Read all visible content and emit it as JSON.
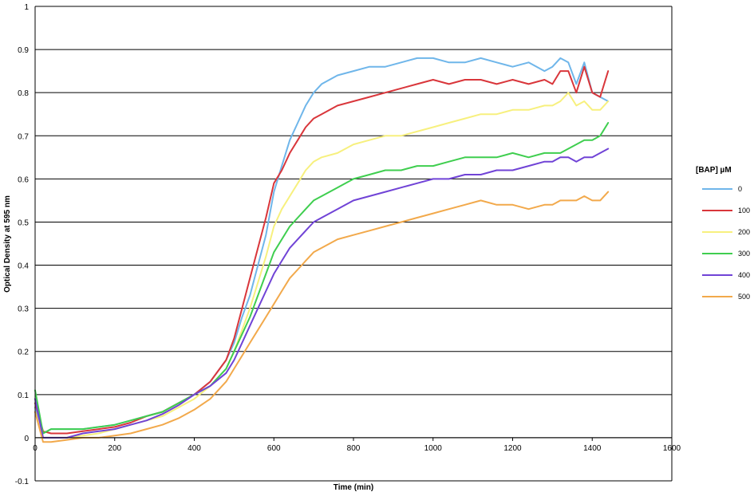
{
  "chart_data": {
    "type": "line",
    "xlabel": "Time (min)",
    "ylabel": "Optical Density at 595 nm",
    "xlim": [
      0,
      1600
    ],
    "ylim": [
      -0.1,
      1
    ],
    "xticks": [
      0,
      200,
      400,
      600,
      800,
      1000,
      1200,
      1400,
      1600
    ],
    "yticks": [
      -0.1,
      0,
      0.1,
      0.2,
      0.3,
      0.4,
      0.5,
      0.6,
      0.7,
      0.8,
      0.9,
      1
    ],
    "ytick_labels": [
      "-0.1",
      "0",
      "0.1",
      "0.2",
      "0.3",
      "0.4",
      "0.5",
      "0.6",
      "0.7",
      "0.8",
      "0.9",
      "1"
    ],
    "grid": "horizontal",
    "legend": {
      "title": "[BAP] µM",
      "position": "right"
    },
    "series": [
      {
        "name": "0",
        "color": "#6fb6ea",
        "x": [
          0,
          20,
          40,
          80,
          120,
          160,
          200,
          240,
          280,
          320,
          360,
          400,
          440,
          480,
          500,
          520,
          540,
          560,
          580,
          600,
          620,
          640,
          660,
          680,
          700,
          720,
          760,
          800,
          840,
          880,
          920,
          960,
          1000,
          1040,
          1080,
          1120,
          1160,
          1200,
          1240,
          1280,
          1300,
          1320,
          1340,
          1360,
          1380,
          1400,
          1420,
          1440
        ],
        "y": [
          0.07,
          0.01,
          0.02,
          0.02,
          0.02,
          0.025,
          0.03,
          0.04,
          0.05,
          0.06,
          0.08,
          0.1,
          0.13,
          0.18,
          0.22,
          0.28,
          0.33,
          0.4,
          0.47,
          0.57,
          0.63,
          0.69,
          0.73,
          0.77,
          0.8,
          0.82,
          0.84,
          0.85,
          0.86,
          0.86,
          0.87,
          0.88,
          0.88,
          0.87,
          0.87,
          0.88,
          0.87,
          0.86,
          0.87,
          0.85,
          0.86,
          0.88,
          0.87,
          0.82,
          0.87,
          0.8,
          0.79,
          0.78
        ]
      },
      {
        "name": "100",
        "color": "#d9363b",
        "x": [
          0,
          20,
          40,
          80,
          120,
          160,
          200,
          240,
          280,
          320,
          360,
          400,
          440,
          480,
          500,
          520,
          540,
          560,
          580,
          600,
          620,
          640,
          660,
          680,
          700,
          720,
          760,
          800,
          840,
          880,
          920,
          960,
          1000,
          1040,
          1080,
          1120,
          1160,
          1200,
          1240,
          1280,
          1300,
          1320,
          1340,
          1360,
          1380,
          1400,
          1420,
          1440
        ],
        "y": [
          0.08,
          0.015,
          0.01,
          0.01,
          0.015,
          0.02,
          0.025,
          0.035,
          0.05,
          0.06,
          0.08,
          0.1,
          0.13,
          0.18,
          0.23,
          0.3,
          0.37,
          0.44,
          0.51,
          0.59,
          0.62,
          0.66,
          0.69,
          0.72,
          0.74,
          0.75,
          0.77,
          0.78,
          0.79,
          0.8,
          0.81,
          0.82,
          0.83,
          0.82,
          0.83,
          0.83,
          0.82,
          0.83,
          0.82,
          0.83,
          0.82,
          0.85,
          0.85,
          0.8,
          0.86,
          0.8,
          0.79,
          0.85
        ]
      },
      {
        "name": "200",
        "color": "#f7f07e",
        "x": [
          0,
          20,
          40,
          80,
          120,
          160,
          200,
          240,
          280,
          320,
          360,
          400,
          440,
          480,
          500,
          520,
          540,
          560,
          580,
          600,
          620,
          640,
          660,
          680,
          700,
          720,
          760,
          800,
          840,
          880,
          920,
          960,
          1000,
          1040,
          1080,
          1120,
          1160,
          1200,
          1240,
          1280,
          1300,
          1320,
          1340,
          1360,
          1380,
          1400,
          1420,
          1440
        ],
        "y": [
          0.06,
          0.0,
          0.0,
          0.0,
          0.005,
          0.01,
          0.02,
          0.03,
          0.04,
          0.05,
          0.07,
          0.09,
          0.12,
          0.16,
          0.2,
          0.25,
          0.3,
          0.36,
          0.42,
          0.49,
          0.53,
          0.56,
          0.59,
          0.62,
          0.64,
          0.65,
          0.66,
          0.68,
          0.69,
          0.7,
          0.7,
          0.71,
          0.72,
          0.73,
          0.74,
          0.75,
          0.75,
          0.76,
          0.76,
          0.77,
          0.77,
          0.78,
          0.8,
          0.77,
          0.78,
          0.76,
          0.76,
          0.78
        ]
      },
      {
        "name": "300",
        "color": "#3fce4f",
        "x": [
          0,
          20,
          40,
          80,
          120,
          160,
          200,
          240,
          280,
          320,
          360,
          400,
          440,
          480,
          500,
          520,
          540,
          560,
          580,
          600,
          620,
          640,
          660,
          680,
          700,
          720,
          760,
          800,
          840,
          880,
          920,
          960,
          1000,
          1040,
          1080,
          1120,
          1160,
          1200,
          1240,
          1280,
          1300,
          1320,
          1340,
          1360,
          1380,
          1400,
          1420,
          1440
        ],
        "y": [
          0.11,
          0.01,
          0.02,
          0.02,
          0.02,
          0.025,
          0.03,
          0.04,
          0.05,
          0.06,
          0.08,
          0.1,
          0.12,
          0.16,
          0.2,
          0.24,
          0.28,
          0.33,
          0.38,
          0.43,
          0.46,
          0.49,
          0.51,
          0.53,
          0.55,
          0.56,
          0.58,
          0.6,
          0.61,
          0.62,
          0.62,
          0.63,
          0.63,
          0.64,
          0.65,
          0.65,
          0.65,
          0.66,
          0.65,
          0.66,
          0.66,
          0.66,
          0.67,
          0.68,
          0.69,
          0.69,
          0.7,
          0.73
        ]
      },
      {
        "name": "400",
        "color": "#7043d6",
        "x": [
          0,
          20,
          40,
          80,
          120,
          160,
          200,
          240,
          280,
          320,
          360,
          400,
          440,
          480,
          500,
          520,
          540,
          560,
          580,
          600,
          620,
          640,
          660,
          680,
          700,
          720,
          760,
          800,
          840,
          880,
          920,
          960,
          1000,
          1040,
          1080,
          1120,
          1160,
          1200,
          1240,
          1280,
          1300,
          1320,
          1340,
          1360,
          1380,
          1400,
          1420,
          1440
        ],
        "y": [
          0.09,
          0.0,
          0.0,
          0.0,
          0.01,
          0.015,
          0.02,
          0.03,
          0.04,
          0.055,
          0.075,
          0.1,
          0.12,
          0.15,
          0.18,
          0.22,
          0.26,
          0.3,
          0.34,
          0.38,
          0.41,
          0.44,
          0.46,
          0.48,
          0.5,
          0.51,
          0.53,
          0.55,
          0.56,
          0.57,
          0.58,
          0.59,
          0.6,
          0.6,
          0.61,
          0.61,
          0.62,
          0.62,
          0.63,
          0.64,
          0.64,
          0.65,
          0.65,
          0.64,
          0.65,
          0.65,
          0.66,
          0.67
        ]
      },
      {
        "name": "500",
        "color": "#f2a94b",
        "x": [
          0,
          20,
          40,
          80,
          120,
          160,
          200,
          240,
          280,
          320,
          360,
          400,
          440,
          480,
          500,
          520,
          540,
          560,
          580,
          600,
          620,
          640,
          660,
          680,
          700,
          720,
          760,
          800,
          840,
          880,
          920,
          960,
          1000,
          1040,
          1080,
          1120,
          1160,
          1200,
          1240,
          1280,
          1300,
          1320,
          1340,
          1360,
          1380,
          1400,
          1420,
          1440
        ],
        "y": [
          0.06,
          -0.01,
          -0.01,
          -0.005,
          0.0,
          0.0,
          0.005,
          0.01,
          0.02,
          0.03,
          0.045,
          0.065,
          0.09,
          0.13,
          0.16,
          0.19,
          0.22,
          0.25,
          0.28,
          0.31,
          0.34,
          0.37,
          0.39,
          0.41,
          0.43,
          0.44,
          0.46,
          0.47,
          0.48,
          0.49,
          0.5,
          0.51,
          0.52,
          0.53,
          0.54,
          0.55,
          0.54,
          0.54,
          0.53,
          0.54,
          0.54,
          0.55,
          0.55,
          0.55,
          0.56,
          0.55,
          0.55,
          0.57
        ]
      }
    ]
  }
}
